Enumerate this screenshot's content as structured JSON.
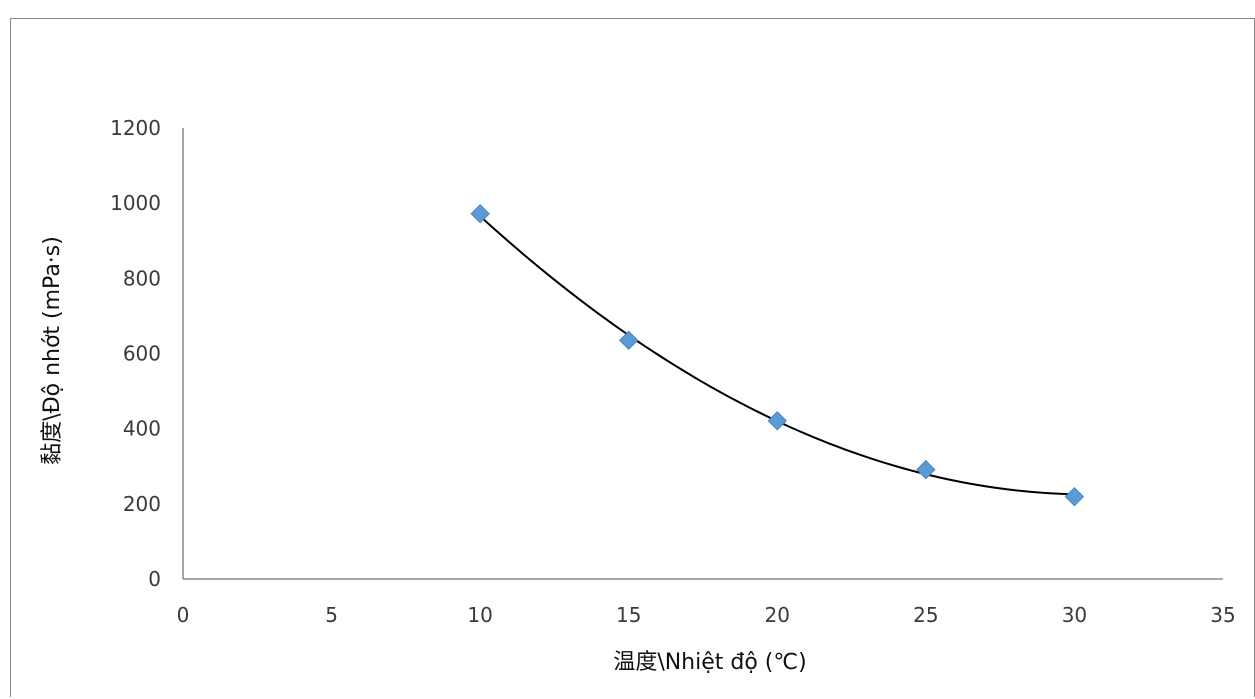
{
  "chart_data": {
    "type": "scatter",
    "title": "",
    "xlabel": "温度\\Nhiệt độ (℃)",
    "ylabel": "黏度\\Độ nhớt (mPa·s)",
    "xlim": [
      0,
      35
    ],
    "ylim": [
      0,
      1200
    ],
    "x_ticks": [
      0,
      5,
      10,
      15,
      20,
      25,
      30,
      35
    ],
    "y_ticks": [
      0,
      200,
      400,
      600,
      800,
      1000,
      1200
    ],
    "grid": false,
    "legend": "none",
    "series": [
      {
        "x": [
          10,
          15,
          20,
          25,
          30
        ],
        "y": [
          972,
          635,
          421,
          291,
          219
        ],
        "marker": "diamond",
        "color": "#5B9BD5"
      }
    ],
    "trendline": {
      "type": "polynomial-2",
      "color": "#000000"
    }
  }
}
